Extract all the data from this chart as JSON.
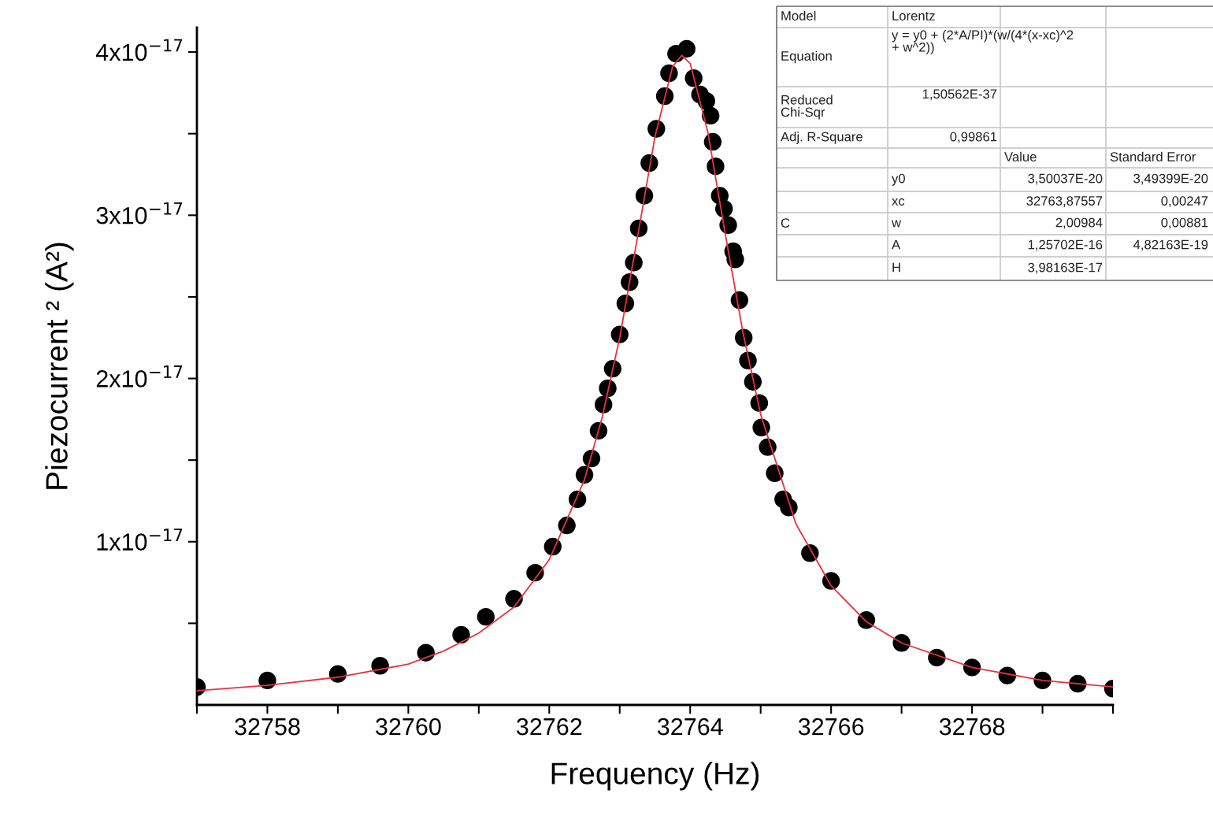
{
  "chart_data": {
    "type": "scatter",
    "xlabel": "Frequency (Hz)",
    "ylabel": "Piezocurrent ² (A²)",
    "xlim": [
      32757,
      32770
    ],
    "ylim": [
      0,
      4.15e-17
    ],
    "xticks": [
      {
        "value": 32757,
        "label": null
      },
      32758,
      {
        "value": 32759,
        "label": null
      },
      32760,
      {
        "value": 32761,
        "label": null
      },
      32762,
      {
        "value": 32763,
        "label": null
      },
      32764,
      {
        "value": 32765,
        "label": null
      },
      32766,
      {
        "value": 32767,
        "label": null
      },
      32768,
      {
        "value": 32769,
        "label": null
      },
      {
        "value": 32770,
        "label": null
      }
    ],
    "yticks": [
      {
        "value": 5e-18,
        "label": null
      },
      {
        "value": 1e-17,
        "label": "1x10$^{−17}$"
      },
      {
        "value": 1.5e-17,
        "label": null
      },
      {
        "value": 2e-17,
        "label": "2x10$^{−17}$"
      },
      {
        "value": 2.5e-17,
        "label": null
      },
      {
        "value": 3e-17,
        "label": "3x10$^{−17}$"
      },
      {
        "value": 3.5e-17,
        "label": null
      },
      {
        "value": 4e-17,
        "label": "4x10$^{−17}$"
      }
    ],
    "grid": false,
    "series": [
      {
        "color": "#000000",
        "marker": "circle",
        "x": [
          32757.0,
          32758.0,
          32759.0,
          32759.6,
          32760.25,
          32760.75,
          32761.1,
          32761.5,
          32761.8,
          32762.05,
          32762.25,
          32762.4,
          32762.5,
          32762.6,
          32762.7,
          32762.77,
          32762.83,
          32762.9,
          32763.0,
          32763.08,
          32763.14,
          32763.2,
          32763.27,
          32763.35,
          32763.42,
          32763.52,
          32763.64,
          32763.7,
          32763.8,
          32763.95,
          32764.05,
          32764.14,
          32764.23,
          32764.29,
          32764.32,
          32764.36,
          32764.42,
          32764.48,
          32764.54,
          32764.61,
          32764.64,
          32764.7,
          32764.76,
          32764.82,
          32764.89,
          32764.98,
          32765.01,
          32765.1,
          32765.2,
          32765.32,
          32765.4,
          32765.7,
          32766.0,
          32766.5,
          32767.0,
          32767.5,
          32768.0,
          32768.5,
          32769.0,
          32769.5,
          32770.0
        ],
        "values": [
          1.1e-18,
          1.5e-18,
          1.9e-18,
          2.4e-18,
          3.2e-18,
          4.3e-18,
          5.4e-18,
          6.5e-18,
          8.1e-18,
          9.7e-18,
          1.1e-17,
          1.26e-17,
          1.41e-17,
          1.51e-17,
          1.68e-17,
          1.84e-17,
          1.94e-17,
          2.06e-17,
          2.27e-17,
          2.46e-17,
          2.59e-17,
          2.71e-17,
          2.92e-17,
          3.12e-17,
          3.32e-17,
          3.53e-17,
          3.73e-17,
          3.87e-17,
          3.99e-17,
          4.02e-17,
          3.84e-17,
          3.74e-17,
          3.7e-17,
          3.61e-17,
          3.45e-17,
          3.3e-17,
          3.12e-17,
          3.04e-17,
          2.94e-17,
          2.78e-17,
          2.73e-17,
          2.48e-17,
          2.25e-17,
          2.11e-17,
          1.98e-17,
          1.85e-17,
          1.7e-17,
          1.58e-17,
          1.42e-17,
          1.26e-17,
          1.21e-17,
          9.3e-18,
          7.6e-18,
          5.2e-18,
          3.8e-18,
          2.9e-18,
          2.3e-18,
          1.8e-18,
          1.5e-18,
          1.3e-18,
          1e-18
        ]
      },
      {
        "type": "line",
        "color": "#e8323c",
        "marker": "none",
        "line_style": "solid",
        "x": [
          32757.0,
          32758.0,
          32759.0,
          32760.0,
          32760.5,
          32761.0,
          32761.5,
          32762.0,
          32762.5,
          32762.75,
          32763.0,
          32763.25,
          32763.5,
          32763.75,
          32763.88,
          32764.0,
          32764.25,
          32764.5,
          32764.75,
          32765.0,
          32765.5,
          32766.0,
          32766.5,
          32767.0,
          32768.0,
          32769.0,
          32770.0
        ],
        "values": [
          8.7e-19,
          1.2e-18,
          1.7e-18,
          2.5e-18,
          3.3e-18,
          4.4e-18,
          6e-18,
          8.9e-18,
          1.38e-17,
          1.76e-17,
          2.25e-17,
          2.86e-17,
          3.48e-17,
          3.91e-17,
          3.98e-17,
          3.93e-17,
          3.51e-17,
          2.88e-17,
          2.28e-17,
          1.78e-17,
          1.11e-17,
          7.3e-18,
          5.1e-18,
          3.8e-18,
          2.3e-18,
          1.5e-18,
          1.1e-18
        ]
      }
    ],
    "annotations": [
      "Model",
      "Lorentz",
      "Equation",
      "y = y0 + (2*A/PI)*(w/(4*(x-xc)^2\n+ w^2))",
      "Reduced\nChi-Sqr",
      "1,50562E-37",
      "Adj. R-Square",
      "0,99861",
      "Value",
      "Standard Error",
      "C",
      "y0",
      "3,50037E-20",
      "3,49399E-20",
      "xc",
      "32763,87557",
      "0,00247",
      "w",
      "2,00984",
      "0,00881",
      "A",
      "1,25702E-16",
      "4,82163E-19",
      "H",
      "3,98163E-17"
    ]
  }
}
